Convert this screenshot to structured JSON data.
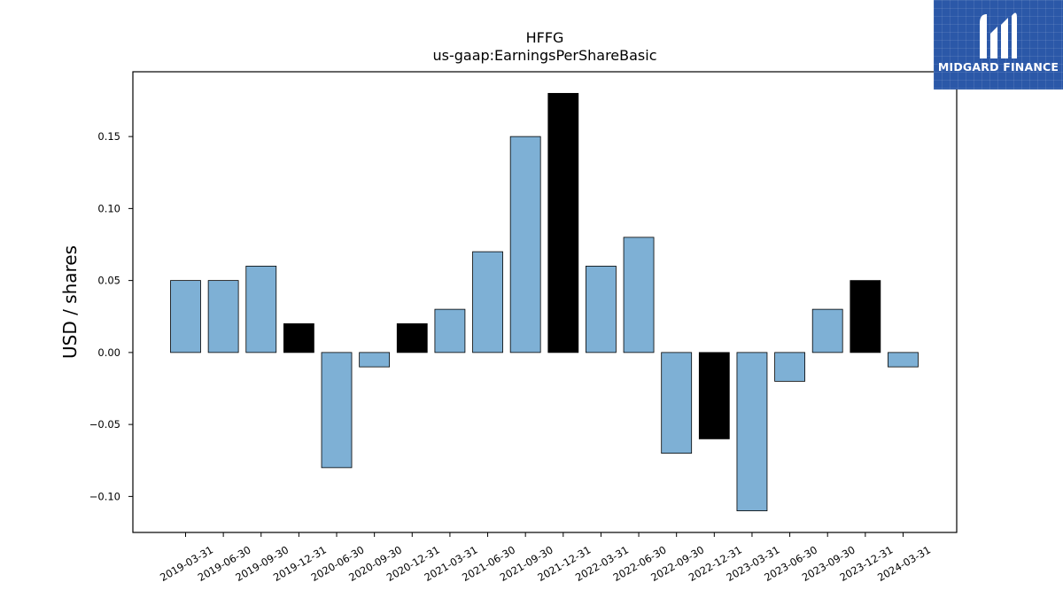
{
  "brand": {
    "name": "MIDGARD FINANCE",
    "logo_icon": "midgard-m-logo-icon",
    "bg_color": "#2b58a8"
  },
  "colors": {
    "bar_normal": "#7eb0d5",
    "bar_highlight": "#000000",
    "bar_edge": "#000000"
  },
  "chart_data": {
    "type": "bar",
    "title": "HFFG",
    "subtitle": "us-gaap:EarningsPerShareBasic",
    "xlabel": "",
    "ylabel": "USD / shares",
    "ylim": [
      -0.125,
      0.195
    ],
    "yticks": [
      -0.1,
      -0.05,
      0.0,
      0.05,
      0.1,
      0.15
    ],
    "ytick_labels": [
      "−0.10",
      "−0.05",
      "0.00",
      "0.05",
      "0.10",
      "0.15"
    ],
    "grid": false,
    "legend": "none",
    "categories": [
      "2019-03-31",
      "2019-06-30",
      "2019-09-30",
      "2019-12-31",
      "2020-06-30",
      "2020-09-30",
      "2020-12-31",
      "2021-03-31",
      "2021-06-30",
      "2021-09-30",
      "2021-12-31",
      "2022-03-31",
      "2022-06-30",
      "2022-09-30",
      "2022-12-31",
      "2023-03-31",
      "2023-06-30",
      "2023-09-30",
      "2023-12-31",
      "2024-03-31"
    ],
    "values": [
      0.05,
      0.05,
      0.06,
      0.02,
      -0.08,
      -0.01,
      0.02,
      0.03,
      0.07,
      0.15,
      0.18,
      0.06,
      0.08,
      -0.07,
      -0.06,
      -0.11,
      -0.02,
      0.03,
      0.05,
      -0.01
    ],
    "highlight": [
      false,
      false,
      false,
      true,
      false,
      false,
      true,
      false,
      false,
      false,
      true,
      false,
      false,
      false,
      true,
      false,
      false,
      false,
      true,
      false
    ]
  }
}
